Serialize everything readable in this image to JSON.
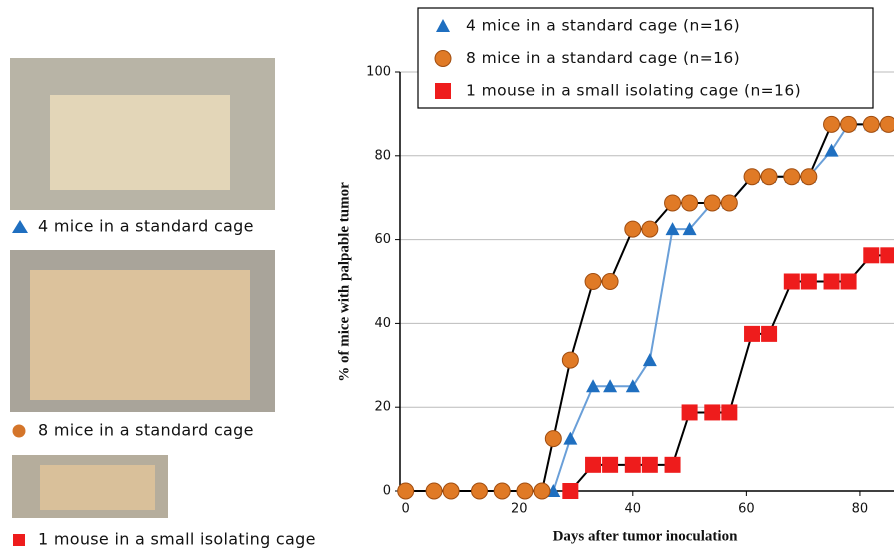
{
  "panels": [
    {
      "caption": "4 mice in a standard cage"
    },
    {
      "caption": "8 mice in a standard cage"
    },
    {
      "caption": "1 mouse in a small isolating cage"
    }
  ],
  "chart_data": {
    "type": "line",
    "x_label": "Days after tumor inoculation",
    "y_label": "% of mice with palpable tumor",
    "xlim": [
      -1,
      86
    ],
    "ylim": [
      0,
      100
    ],
    "xticks": [
      0,
      20,
      40,
      60,
      80
    ],
    "yticks": [
      0,
      20,
      40,
      60,
      80,
      100
    ],
    "grid": true,
    "legend": "top",
    "series": [
      {
        "name": "4 mice in a standard cage (n=16)",
        "color": "#1f6fc0",
        "line_color": "#6a9fd8",
        "marker": "triangle",
        "x": [
          26,
          29,
          33,
          36,
          40,
          43,
          47,
          50,
          54,
          57,
          61,
          64,
          68,
          71,
          75,
          78,
          82,
          85
        ],
        "values": [
          0,
          12.5,
          25,
          25,
          25,
          31.25,
          62.5,
          62.5,
          68.75,
          68.75,
          75,
          75,
          75,
          75,
          81.25,
          87.5,
          87.5,
          87.5
        ]
      },
      {
        "name": "8 mice in a standard cage (n=16)",
        "color": "#e07a26",
        "line_color": "#000000",
        "marker": "circle",
        "x": [
          0,
          5,
          8,
          13,
          17,
          21,
          24,
          26,
          29,
          33,
          36,
          40,
          43,
          47,
          50,
          54,
          57,
          61,
          64,
          68,
          71,
          75,
          78,
          82,
          85
        ],
        "values": [
          0,
          0,
          0,
          0,
          0,
          0,
          0,
          12.5,
          31.25,
          50,
          50,
          62.5,
          62.5,
          68.75,
          68.75,
          68.75,
          68.75,
          75,
          75,
          75,
          75,
          87.5,
          87.5,
          87.5,
          87.5
        ]
      },
      {
        "name": "1 mouse in a small isolating cage (n=16)",
        "color": "#ee1c1c",
        "line_color": "#000000",
        "marker": "square",
        "x": [
          29,
          33,
          36,
          40,
          43,
          47,
          50,
          54,
          57,
          61,
          64,
          68,
          71,
          75,
          78,
          82,
          85
        ],
        "values": [
          0,
          6.25,
          6.25,
          6.25,
          6.25,
          6.25,
          18.75,
          18.75,
          18.75,
          37.5,
          37.5,
          50,
          50,
          50,
          50,
          56.25,
          56.25
        ]
      }
    ]
  }
}
